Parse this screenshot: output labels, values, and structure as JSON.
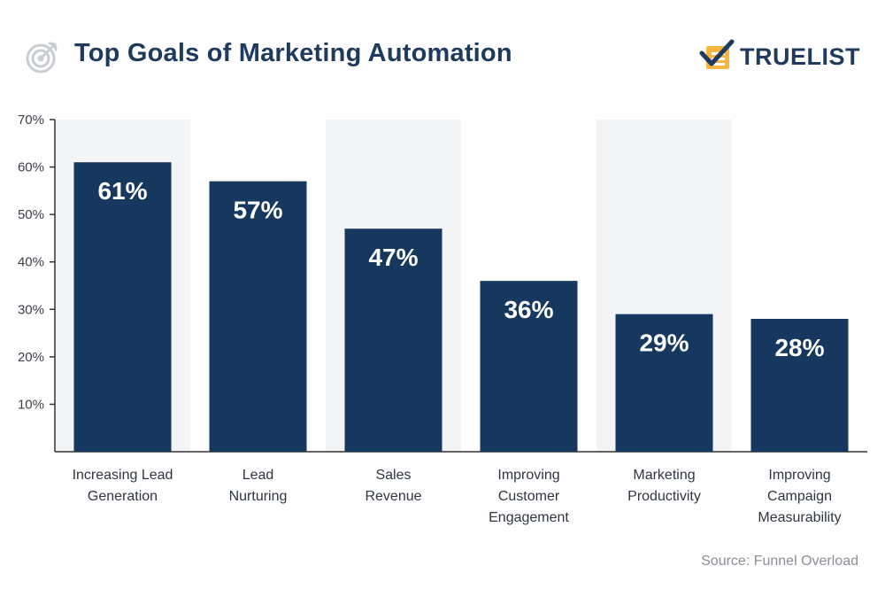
{
  "header": {
    "title": "Top Goals of Marketing Automation",
    "brand": "TRUELIST",
    "title_icon": "target-icon",
    "brand_icon": "checklist-icon"
  },
  "source": "Source: Funnel Overload",
  "colors": {
    "bar": "#16375e",
    "band": "#f2f4f6",
    "axis": "#333333",
    "text": "#1e3a5f",
    "brand_accent": "#f4b63f"
  },
  "chart_data": {
    "type": "bar",
    "title": "Top Goals of Marketing Automation",
    "categories": [
      [
        "Increasing Lead",
        "Generation"
      ],
      [
        "Lead",
        "Nurturing"
      ],
      [
        "Sales",
        "Revenue"
      ],
      [
        "Improving",
        "Customer",
        "Engagement"
      ],
      [
        "Marketing",
        "Productivity"
      ],
      [
        "Improving",
        "Campaign",
        "Measurability"
      ]
    ],
    "values": [
      61,
      57,
      47,
      36,
      29,
      28
    ],
    "value_labels": [
      "61%",
      "57%",
      "47%",
      "36%",
      "29%",
      "28%"
    ],
    "ylim": [
      0,
      70
    ],
    "yticks": [
      10,
      20,
      30,
      40,
      50,
      60,
      70
    ],
    "ytick_labels": [
      "10%",
      "20%",
      "30%",
      "40%",
      "50%",
      "60%",
      "70%"
    ],
    "shaded_bands": [
      0,
      2,
      4
    ],
    "legend": "none",
    "grid": false
  }
}
